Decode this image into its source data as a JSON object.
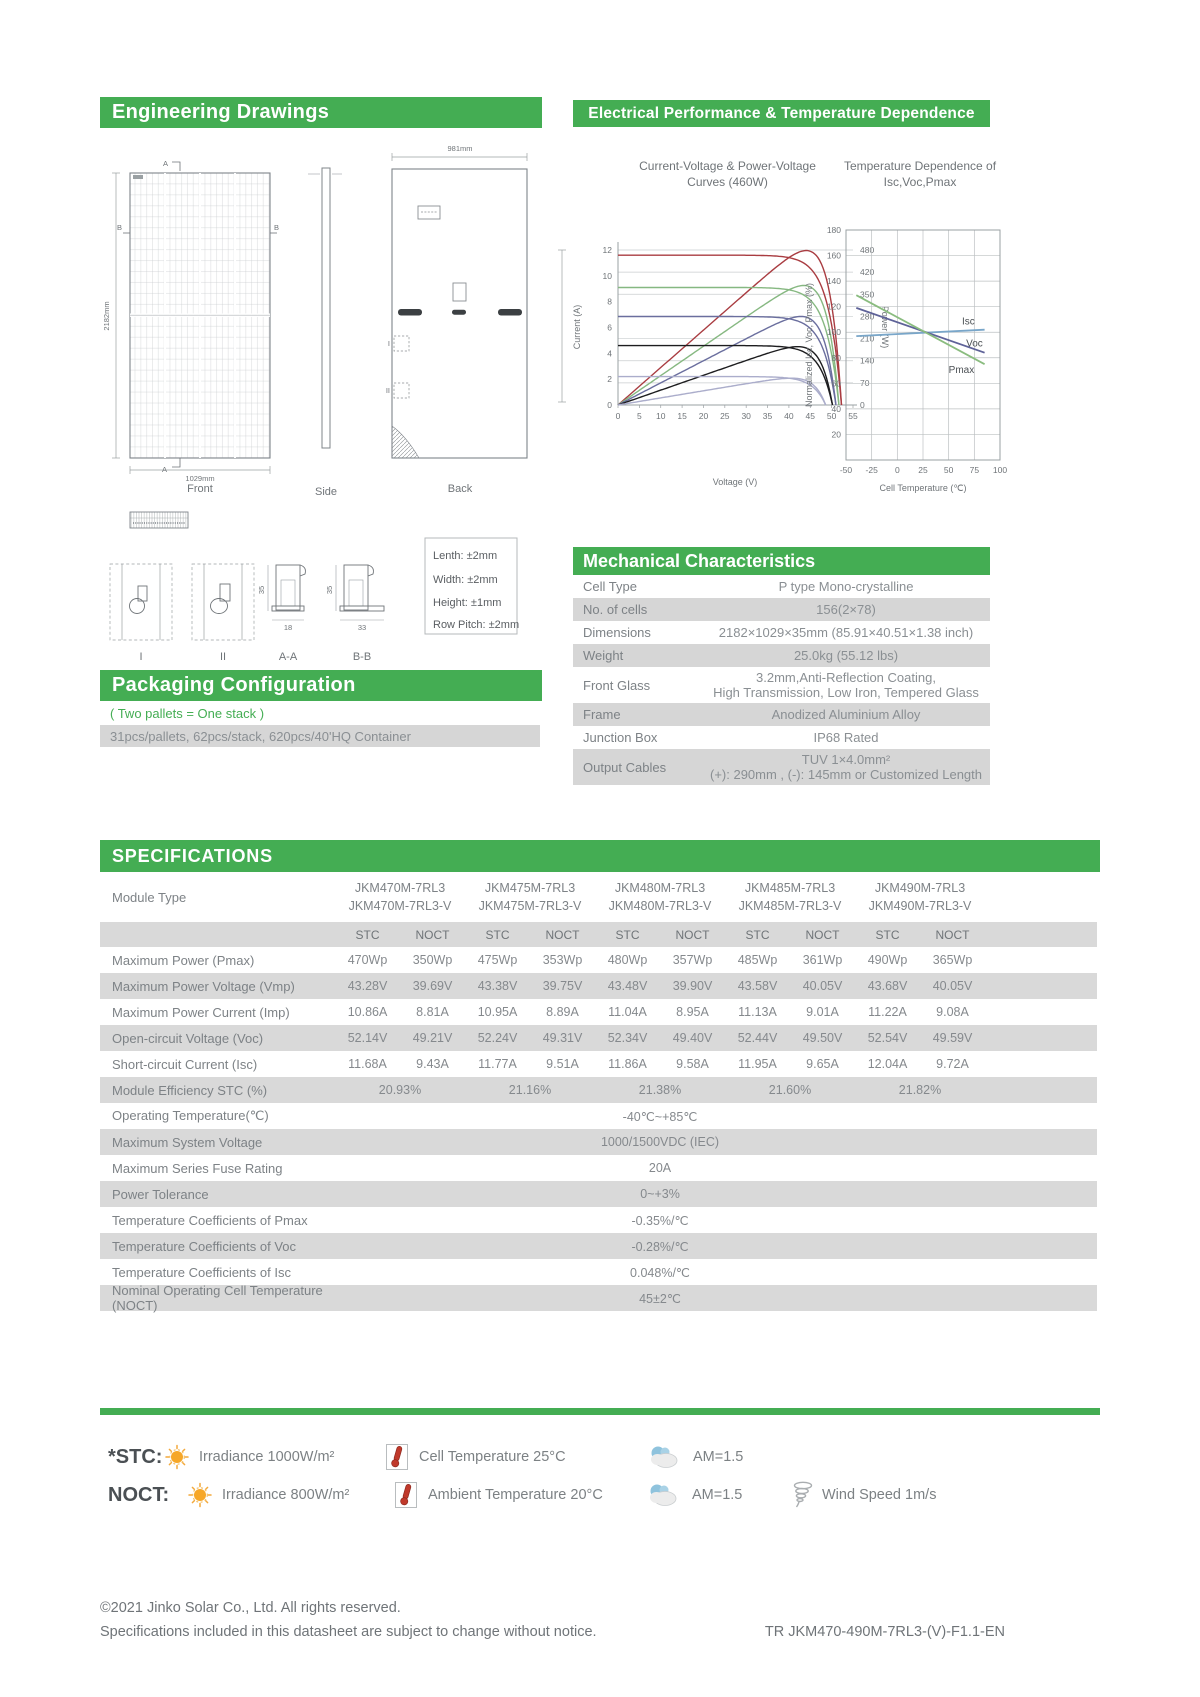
{
  "accent_color": "#44ad53",
  "sections": {
    "engineering_title": "Engineering Drawings",
    "electrical_title": "Electrical Performance & Temperature Dependence",
    "mechanical_title": "Mechanical Characteristics",
    "packaging_title": "Packaging Configuration",
    "specifications_title": "SPECIFICATIONS"
  },
  "drawings": {
    "front_label": "Front",
    "side_label": "Side",
    "back_label": "Back",
    "dim_height": "2182mm",
    "dim_width": "1029mm",
    "dim_back_width": "981mm",
    "marker_a": "A",
    "marker_b": "B",
    "detail_labels": [
      "I",
      "II",
      "A-A",
      "B-B"
    ],
    "profile_height": "35",
    "profile_width_aa": "18",
    "profile_width_bb": "33",
    "tolerances": [
      "Lenth: ±2mm",
      "Width: ±2mm",
      "Height: ±1mm",
      "Row Pitch: ±2mm"
    ]
  },
  "packaging": {
    "note": "( Two pallets = One stack )",
    "detail": "31pcs/pallets, 62pcs/stack, 620pcs/40'HQ Container"
  },
  "mechanical": {
    "rows": [
      {
        "label": "Cell  Type",
        "value": "P type Mono-crystalline"
      },
      {
        "label": "No. of cells",
        "value": "156(2×78)"
      },
      {
        "label": "Dimensions",
        "value": "2182×1029×35mm (85.91×40.51×1.38 inch)"
      },
      {
        "label": "Weight",
        "value": "25.0kg (55.12 lbs)"
      },
      {
        "label": "Front Glass",
        "value": "3.2mm,Anti-Reflection Coating,\nHigh Transmission, Low Iron, Tempered Glass"
      },
      {
        "label": "Frame",
        "value": "Anodized Aluminium Alloy"
      },
      {
        "label": "Junction Box",
        "value": "IP68 Rated"
      },
      {
        "label": "Output Cables",
        "value": "TUV  1×4.0mm²\n(+): 290mm , (-): 145mm or Customized Length"
      }
    ]
  },
  "specifications": {
    "module_type_label": "Module Type",
    "col_headers": {
      "stc": "STC",
      "noct": "NOCT"
    },
    "models": [
      {
        "line1": "JKM470M-7RL3",
        "line2": "JKM470M-7RL3-V"
      },
      {
        "line1": "JKM475M-7RL3",
        "line2": "JKM475M-7RL3-V"
      },
      {
        "line1": "JKM480M-7RL3",
        "line2": "JKM480M-7RL3-V"
      },
      {
        "line1": "JKM485M-7RL3",
        "line2": "JKM485M-7RL3-V"
      },
      {
        "line1": "JKM490M-7RL3",
        "line2": "JKM490M-7RL3-V"
      }
    ],
    "rows": [
      {
        "label": "Maximum Power (Pmax)",
        "values": [
          [
            "470Wp",
            "350Wp"
          ],
          [
            "475Wp",
            "353Wp"
          ],
          [
            "480Wp",
            "357Wp"
          ],
          [
            "485Wp",
            "361Wp"
          ],
          [
            "490Wp",
            "365Wp"
          ]
        ]
      },
      {
        "label": "Maximum Power Voltage (Vmp)",
        "values": [
          [
            "43.28V",
            "39.69V"
          ],
          [
            "43.38V",
            "39.75V"
          ],
          [
            "43.48V",
            "39.90V"
          ],
          [
            "43.58V",
            "40.05V"
          ],
          [
            "43.68V",
            "40.05V"
          ]
        ]
      },
      {
        "label": "Maximum Power Current (Imp)",
        "values": [
          [
            "10.86A",
            "8.81A"
          ],
          [
            "10.95A",
            "8.89A"
          ],
          [
            "11.04A",
            "8.95A"
          ],
          [
            "11.13A",
            "9.01A"
          ],
          [
            "11.22A",
            "9.08A"
          ]
        ]
      },
      {
        "label": "Open-circuit Voltage (Voc)",
        "values": [
          [
            "52.14V",
            "49.21V"
          ],
          [
            "52.24V",
            "49.31V"
          ],
          [
            "52.34V",
            "49.40V"
          ],
          [
            "52.44V",
            "49.50V"
          ],
          [
            "52.54V",
            "49.59V"
          ]
        ]
      },
      {
        "label": "Short-circuit Current (Isc)",
        "values": [
          [
            "11.68A",
            "9.43A"
          ],
          [
            "11.77A",
            "9.51A"
          ],
          [
            "11.86A",
            "9.58A"
          ],
          [
            "11.95A",
            "9.65A"
          ],
          [
            "12.04A",
            "9.72A"
          ]
        ]
      },
      {
        "label": "Module Efficiency STC (%)",
        "span_values": [
          "20.93%",
          "21.16%",
          "21.38%",
          "21.60%",
          "21.82%"
        ]
      },
      {
        "label": "Operating Temperature(℃)",
        "full_value": "-40℃~+85℃"
      },
      {
        "label": "Maximum System Voltage",
        "full_value": "1000/1500VDC (IEC)"
      },
      {
        "label": "Maximum Series Fuse Rating",
        "full_value": "20A"
      },
      {
        "label": "Power Tolerance",
        "full_value": "0~+3%"
      },
      {
        "label": "Temperature Coefficients of Pmax",
        "full_value": "-0.35%/℃"
      },
      {
        "label": "Temperature Coefficients of Voc",
        "full_value": "-0.28%/℃"
      },
      {
        "label": "Temperature Coefficients of Isc",
        "full_value": "0.048%/℃"
      },
      {
        "label": "Nominal Operating Cell Temperature  (NOCT)",
        "full_value": "45±2℃"
      }
    ]
  },
  "chart_data": [
    {
      "id": "iv-curves",
      "type": "line",
      "title": "Current-Voltage & Power-Voltage\nCurves (460W)",
      "xlabel": "Voltage (V)",
      "ylabel_left": "Current (A)",
      "ylabel_right": "Power (W)",
      "xlim": [
        0,
        55
      ],
      "ylim_left": [
        0,
        12
      ],
      "ylim_right": [
        0,
        480
      ],
      "x_ticks": [
        0,
        5,
        10,
        15,
        20,
        25,
        30,
        35,
        40,
        45,
        50,
        55
      ],
      "y_left_ticks": [
        0,
        2,
        4,
        6,
        8,
        10,
        12
      ],
      "y_right_ticks": [
        0,
        70,
        140,
        210,
        280,
        350,
        420,
        480
      ],
      "grid": "horizontal",
      "series": [
        {
          "isc": 11.6,
          "voc": 52.3,
          "color": "#a93c41"
        },
        {
          "isc": 9.1,
          "voc": 51.7,
          "color": "#86b881"
        },
        {
          "isc": 6.85,
          "voc": 51.0,
          "color": "#6a6e9e"
        },
        {
          "isc": 4.6,
          "voc": 50.2,
          "color": "#1d1d1f"
        },
        {
          "isc": 2.2,
          "voc": 48.6,
          "color": "#abadcb"
        }
      ]
    },
    {
      "id": "temperature-dependence",
      "type": "line",
      "title": "Temperature Dependence of\nIsc,Voc,Pmax",
      "xlabel": "Cell Temperature (℃)",
      "ylabel": "Normalized Isc, Voc, Pmax (%)",
      "xlim": [
        -50,
        100
      ],
      "ylim": [
        0,
        180
      ],
      "x_ticks": [
        -50,
        -25,
        0,
        25,
        50,
        75,
        100
      ],
      "y_ticks": [
        20,
        40,
        60,
        80,
        100,
        120,
        140,
        160,
        180
      ],
      "grid": "both",
      "series": [
        {
          "name": "Isc",
          "color": "#79a6c9",
          "points": [
            [
              -40,
              97
            ],
            [
              85,
              102
            ]
          ],
          "label_pos": [
            63,
            106
          ]
        },
        {
          "name": "Voc",
          "color": "#5e6298",
          "points": [
            [
              -40,
              119
            ],
            [
              85,
              84
            ]
          ],
          "label_pos": [
            67,
            89
          ]
        },
        {
          "name": "Pmax",
          "color": "#8abc7f",
          "points": [
            [
              -40,
              129
            ],
            [
              85,
              75
            ]
          ],
          "label_pos": [
            50,
            68
          ]
        }
      ]
    }
  ],
  "test_conditions": {
    "stc": {
      "label": "*STC:",
      "items": [
        {
          "icon": "sun-icon",
          "text": "Irradiance 1000W/m²"
        },
        {
          "icon": "thermometer-icon",
          "text": "Cell Temperature 25°C"
        },
        {
          "icon": "cloud-icon",
          "text": "AM=1.5"
        }
      ]
    },
    "noct": {
      "label": "NOCT:",
      "items": [
        {
          "icon": "sun-icon",
          "text": "Irradiance 800W/m²"
        },
        {
          "icon": "thermometer-icon",
          "text": "Ambient Temperature 20°C"
        },
        {
          "icon": "cloud-icon",
          "text": "AM=1.5"
        },
        {
          "icon": "wind-icon",
          "text": "Wind Speed 1m/s"
        }
      ]
    }
  },
  "footer": {
    "line1": "©2021 Jinko Solar Co., Ltd. All rights reserved.",
    "line2": "Specifications included in this datasheet are subject to change without notice.",
    "doc_number": "TR JKM470-490M-7RL3-(V)-F1.1-EN"
  }
}
